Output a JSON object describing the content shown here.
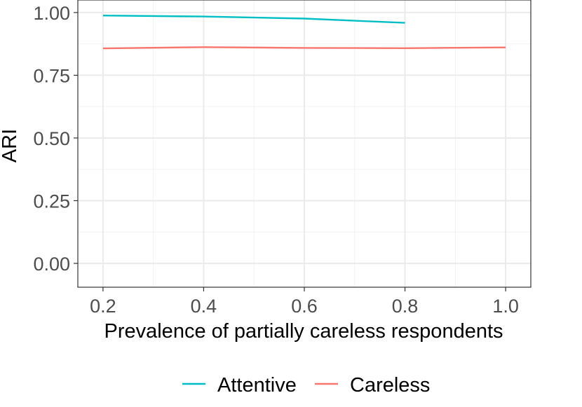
{
  "chart_data": {
    "type": "line",
    "title": "",
    "xlabel": "Prevalence of partially careless respondents",
    "ylabel": "ARI",
    "xlim": [
      0.15,
      1.05
    ],
    "ylim": [
      -0.095,
      1.05
    ],
    "x_ticks": [
      0.2,
      0.4,
      0.6,
      0.8,
      1.0
    ],
    "x_tick_labels": [
      "0.2",
      "0.4",
      "0.6",
      "0.8",
      "1.0"
    ],
    "y_ticks": [
      0,
      0.25,
      0.5,
      0.75,
      1.0
    ],
    "y_tick_labels": [
      "0.00",
      "0.25",
      "0.50",
      "0.75",
      "1.00"
    ],
    "grid": true,
    "legend_position": "bottom",
    "series": [
      {
        "name": "Attentive",
        "color": "#00BFC4",
        "x": [
          0.2,
          0.4,
          0.6,
          0.8
        ],
        "values": [
          0.988,
          0.984,
          0.976,
          0.959
        ]
      },
      {
        "name": "Careless",
        "color": "#F8766D",
        "x": [
          0.2,
          0.4,
          0.6,
          0.8,
          1.0
        ],
        "values": [
          0.857,
          0.862,
          0.859,
          0.858,
          0.861
        ]
      }
    ]
  }
}
